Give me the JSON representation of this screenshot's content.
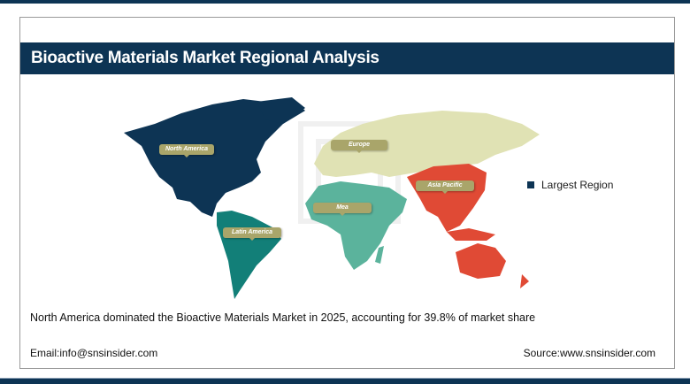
{
  "header": {
    "title": "Bioactive Materials Market Regional Analysis"
  },
  "watermark": "Strategy & Stats",
  "regions": [
    {
      "label": "North America",
      "color": "#0d3454"
    },
    {
      "label": "Europe",
      "color": "#e0e2b4"
    },
    {
      "label": "Asia Pacific",
      "color": "#e04a35"
    },
    {
      "label": "Mea",
      "color": "#5bb39c"
    },
    {
      "label": "Latin America",
      "color": "#127f78"
    }
  ],
  "legend": {
    "label": "Largest Region",
    "color": "#0d3454"
  },
  "caption": "North America dominated the Bioactive Materials Market in 2025, accounting for 39.8% of market share",
  "footer": {
    "email": "Email:info@snsinsider.com",
    "source": "Source:www.snsinsider.com"
  }
}
